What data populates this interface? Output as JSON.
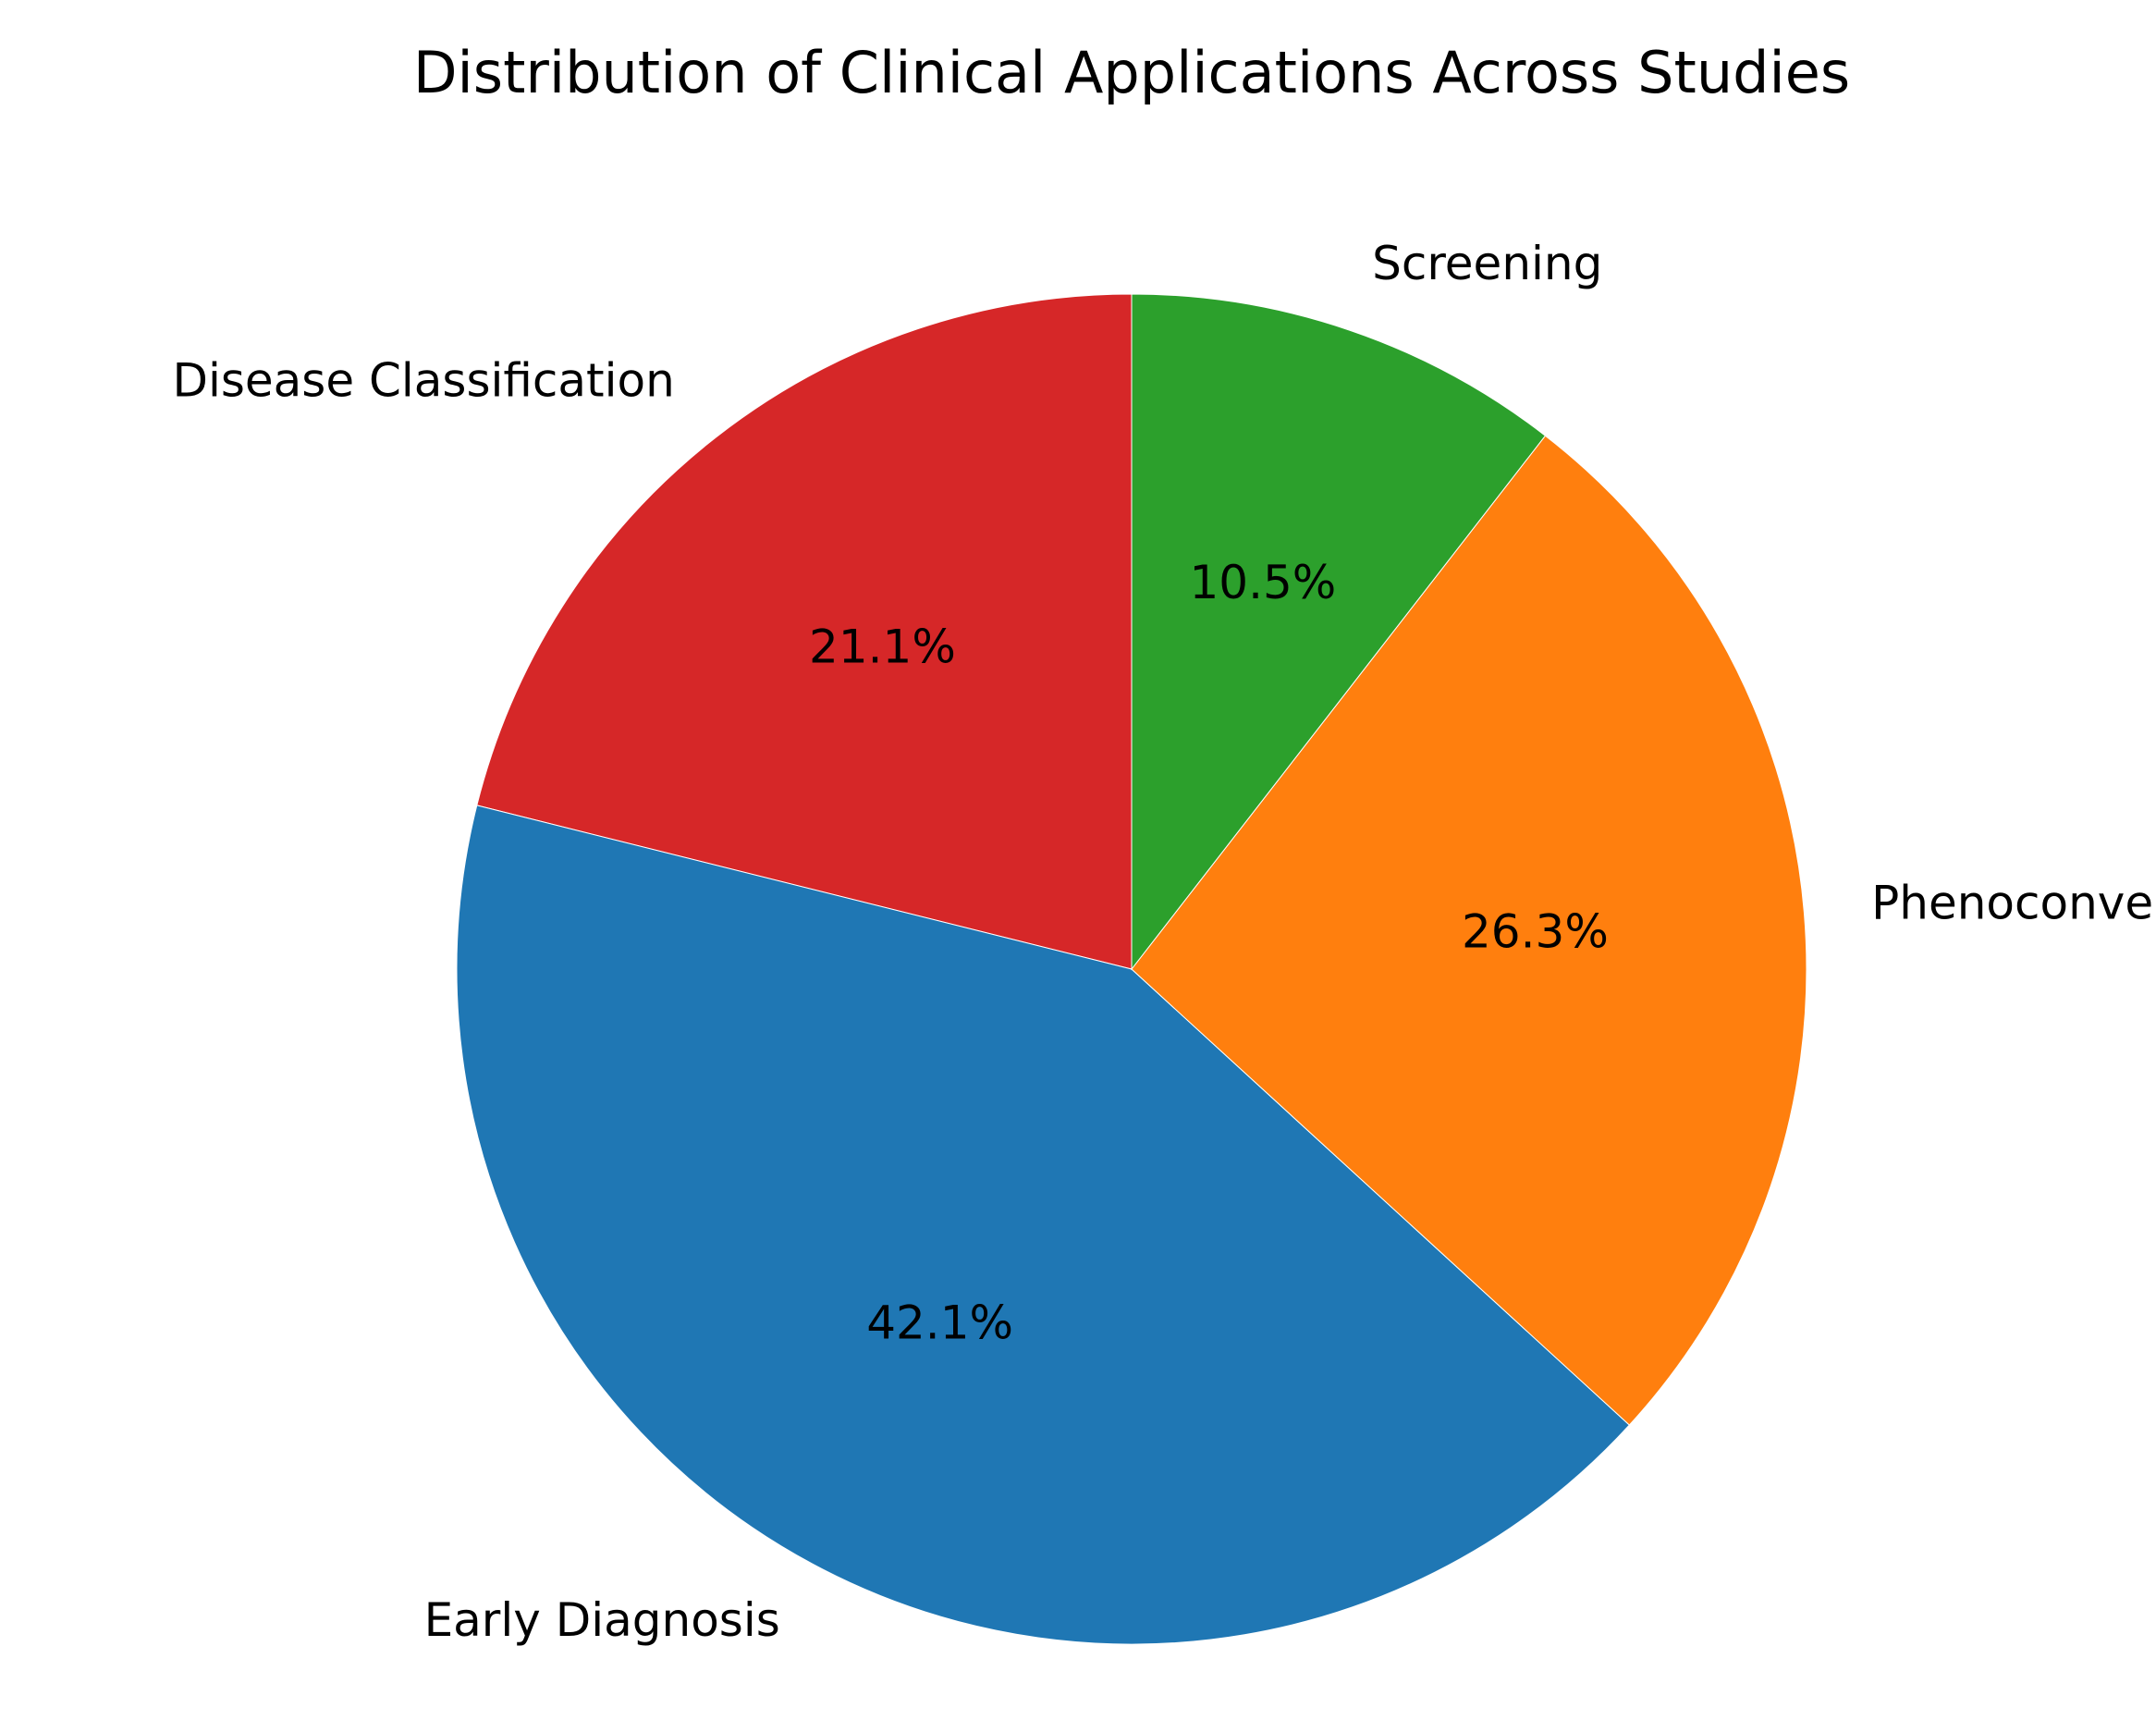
{
  "chart_data": {
    "type": "pie",
    "title": "Distribution of Clinical Applications Across Studies",
    "categories": [
      "Disease Classification",
      "Early Diagnosis",
      "Phenoconversion Prediction",
      "Screening"
    ],
    "values": [
      21.1,
      42.1,
      26.3,
      10.5
    ],
    "value_labels": [
      "21.1%",
      "42.1%",
      "26.3%",
      "10.5%"
    ],
    "colors": [
      "#d62728",
      "#1f77b4",
      "#ff7f0e",
      "#2ca02c"
    ],
    "start_angle_deg": 90,
    "direction": "counterclockwise",
    "legend": "none"
  }
}
